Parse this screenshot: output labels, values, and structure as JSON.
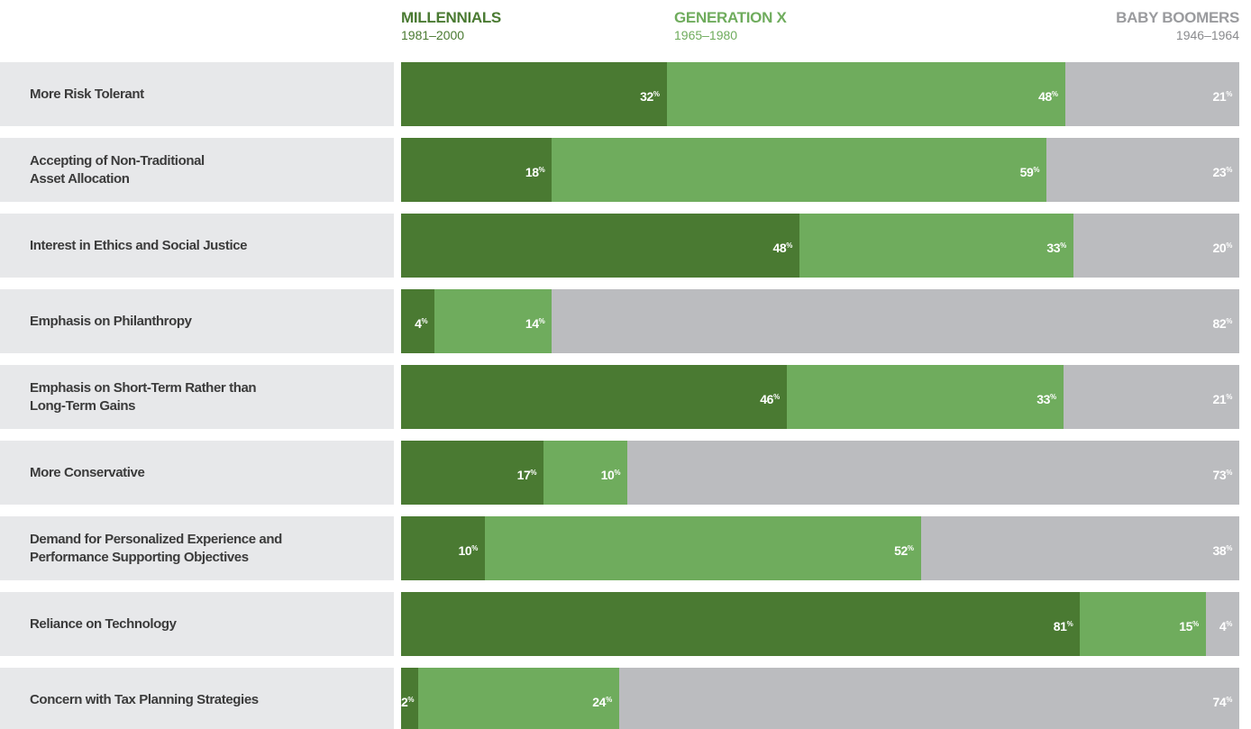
{
  "chart_data": {
    "type": "stacked-bar",
    "categories": [
      "More Risk Tolerant",
      "Accepting of Non-Traditional\nAsset Allocation",
      "Interest in Ethics and Social Justice",
      "Emphasis on Philanthropy",
      "Emphasis on Short-Term Rather than\nLong-Term Gains",
      "More Conservative",
      "Demand for Personalized Experience and\nPerformance Supporting Objectives",
      "Reliance on Technology",
      "Concern with Tax Planning Strategies"
    ],
    "series": [
      {
        "name": "MILLENNIALS",
        "period": "1981–2000",
        "color": "#4a7a32",
        "values": [
          32,
          18,
          48,
          4,
          46,
          17,
          10,
          81,
          2
        ],
        "value_labels": [
          "32%",
          "18%",
          "48%",
          "4%",
          "46%",
          "17%",
          "10%",
          "81%",
          "2%"
        ]
      },
      {
        "name": "GENERATION X",
        "period": "1965–1980",
        "color": "#6fac5d",
        "values": [
          48,
          59,
          33,
          14,
          33,
          10,
          52,
          15,
          24
        ],
        "value_labels": [
          "48%",
          "59%",
          "33%",
          "14%",
          "33%",
          "10%",
          "52%",
          "15%",
          "24%"
        ]
      },
      {
        "name": "BABY BOOMERS",
        "period": "1946–1964",
        "color": "#bbbcbf",
        "values": [
          21,
          23,
          20,
          82,
          21,
          73,
          38,
          4,
          74
        ],
        "value_labels": [
          "21%",
          "23%",
          "20%",
          "82%",
          "21%",
          "73%",
          "38%",
          "4%",
          "74%"
        ]
      }
    ]
  }
}
